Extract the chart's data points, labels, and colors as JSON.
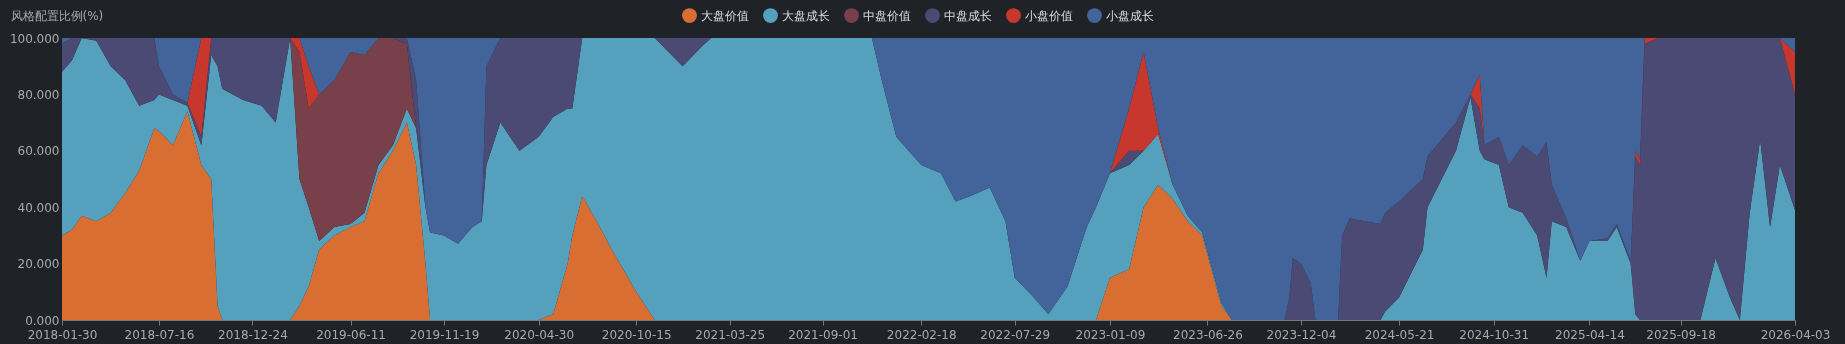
{
  "chart_data": {
    "type": "area",
    "stacked": true,
    "ylabel": "风格配置比例(%)",
    "legend": "top",
    "x": [
      "2018-01-30",
      "2018-02-16",
      "2018-03-05",
      "2018-03-30",
      "2018-04-24",
      "2018-05-19",
      "2018-06-12",
      "2018-07-08",
      "2018-07-16",
      "2018-08-09",
      "2018-09-03",
      "2018-09-27",
      "2018-10-14",
      "2018-10-25",
      "2018-11-02",
      "2018-12-08",
      "2019-01-09",
      "2019-02-02",
      "2019-02-27",
      "2019-03-15",
      "2019-03-31",
      "2019-04-18",
      "2019-05-14",
      "2019-06-11",
      "2019-07-05",
      "2019-07-29",
      "2019-08-23",
      "2019-09-16",
      "2019-10-02",
      "2019-10-18",
      "2019-10-26",
      "2019-11-19",
      "2019-12-13",
      "2020-01-07",
      "2020-01-23",
      "2020-01-31",
      "2020-02-24",
      "2020-03-28",
      "2020-04-30",
      "2020-05-25",
      "2020-06-19",
      "2020-06-27",
      "2020-07-14",
      "2020-08-08",
      "2020-09-03",
      "2020-10-15",
      "2020-11-16",
      "2021-01-03",
      "2021-02-05",
      "2021-02-21",
      "2021-11-25",
      "2021-12-12",
      "2022-01-06",
      "2022-02-18",
      "2022-03-24",
      "2022-04-18",
      "2022-05-14",
      "2022-06-16",
      "2022-07-13",
      "2022-07-29",
      "2022-08-31",
      "2022-09-25",
      "2022-10-28",
      "2022-11-30",
      "2022-12-16",
      "2023-01-01",
      "2023-01-09",
      "2023-02-11",
      "2023-03-08",
      "2023-04-02",
      "2023-04-27",
      "2023-05-23",
      "2023-06-17",
      "2023-07-20",
      "2023-08-07",
      "2023-11-06",
      "2023-11-14",
      "2023-11-20",
      "2023-12-04",
      "2023-12-21",
      "2023-12-29",
      "2024-02-06",
      "2024-02-13",
      "2024-02-26",
      "2024-04-19",
      "2024-04-27",
      "2024-05-21",
      "2024-07-01",
      "2024-07-09",
      "2024-08-27",
      "2024-09-21",
      "2024-10-07",
      "2024-10-15",
      "2024-11-09",
      "2024-11-26",
      "2024-12-20",
      "2025-01-14",
      "2025-01-30",
      "2025-02-08",
      "2025-03-05",
      "2025-03-29",
      "2025-04-14",
      "2025-05-15",
      "2025-05-31",
      "2025-06-24",
      "2025-07-02",
      "2025-07-10",
      "2025-07-18",
      "2025-08-11",
      "2025-10-22",
      "2025-11-17",
      "2025-12-12",
      "2025-12-29",
      "2026-01-15",
      "2026-02-02",
      "2026-02-19",
      "2026-03-08",
      "2026-04-03"
    ],
    "series": [
      {
        "name": "大盘价值",
        "color": "#d96e32",
        "values": [
          30,
          32,
          37,
          35,
          38,
          45,
          53,
          68,
          67,
          62,
          74,
          55,
          50,
          5,
          0,
          0,
          0,
          0,
          0,
          5,
          12,
          25,
          30,
          33,
          35,
          52,
          60,
          70,
          55,
          20,
          0,
          0,
          0,
          0,
          0,
          0,
          0,
          0,
          0,
          2,
          20,
          30,
          44,
          35,
          25,
          10,
          0,
          0,
          0,
          0,
          0,
          0,
          0,
          0,
          0,
          0,
          0,
          0,
          0,
          0,
          0,
          0,
          0,
          0,
          0,
          10,
          15,
          18,
          40,
          48,
          43,
          35,
          30,
          5,
          0,
          0,
          0,
          0,
          0,
          0,
          0,
          0,
          0,
          0,
          0,
          0,
          0,
          0,
          0,
          0,
          0,
          0,
          0,
          0,
          0,
          0,
          0,
          0,
          0,
          0,
          0,
          0,
          0,
          0,
          0,
          0,
          0,
          0,
          0,
          0,
          0,
          0,
          0,
          0,
          0,
          0,
          0,
          0
        ]
      },
      {
        "name": "大盘成长",
        "color": "#55a0bd",
        "values": [
          58,
          60,
          63,
          64,
          52,
          40,
          23,
          10,
          13,
          16,
          2,
          7,
          44,
          85,
          82,
          78,
          76,
          70,
          100,
          45,
          28,
          3,
          3,
          1,
          3,
          3,
          2,
          5,
          13,
          20,
          31,
          30,
          27,
          33,
          35,
          55,
          70,
          60,
          65,
          70,
          55,
          45,
          56,
          65,
          75,
          90,
          100,
          90,
          97,
          100,
          100,
          85,
          65,
          55,
          52,
          42,
          44,
          47,
          35,
          15,
          8,
          2,
          12,
          33,
          40,
          38,
          37,
          37,
          20,
          18,
          5,
          2,
          1,
          1,
          0,
          0,
          0,
          0,
          0,
          0,
          0,
          0,
          0,
          0,
          0,
          3,
          8,
          25,
          40,
          60,
          79,
          60,
          57,
          55,
          40,
          38,
          30,
          15,
          35,
          33,
          21,
          28,
          28,
          33,
          20,
          2,
          0,
          0,
          0,
          0,
          22,
          8,
          0,
          38,
          64,
          33,
          55,
          39
        ]
      },
      {
        "name": "中盘价值",
        "color": "#77404a",
        "values": [
          null,
          null,
          null,
          null,
          null,
          null,
          null,
          null,
          null,
          null,
          null,
          null,
          null,
          null,
          null,
          null,
          null,
          null,
          0,
          45,
          35,
          52,
          52,
          61,
          56,
          45,
          38,
          23,
          0,
          null,
          null,
          null,
          null,
          null,
          null,
          null,
          null,
          null,
          null,
          null,
          null,
          null,
          null,
          null,
          null,
          null,
          null,
          null,
          null,
          null,
          null,
          null,
          null,
          null,
          null,
          null,
          null,
          null,
          null,
          null,
          null,
          null,
          null,
          null,
          null,
          null,
          null,
          null,
          null,
          null,
          null,
          null,
          null,
          null,
          null,
          null,
          null,
          null,
          null,
          null,
          null,
          null,
          null,
          null,
          null,
          null,
          null,
          null,
          null,
          null,
          null,
          null,
          null,
          null,
          null,
          null,
          null,
          null,
          null,
          null,
          null,
          null,
          null,
          null,
          null,
          null,
          null,
          null,
          null,
          null,
          null,
          null,
          null,
          null,
          null,
          null,
          null,
          null
        ]
      },
      {
        "name": "中盘成长",
        "color": "#4a4a75",
        "values": [
          10,
          8,
          0,
          1,
          10,
          15,
          24,
          22,
          10,
          2,
          1,
          3,
          6,
          10,
          18,
          22,
          24,
          30,
          0,
          null,
          null,
          null,
          null,
          null,
          null,
          null,
          0,
          2,
          17,
          0,
          null,
          null,
          null,
          null,
          0,
          35,
          30,
          40,
          35,
          28,
          25,
          25,
          0,
          null,
          null,
          null,
          0,
          10,
          3,
          0,
          null,
          null,
          null,
          null,
          null,
          null,
          null,
          null,
          null,
          null,
          null,
          null,
          null,
          null,
          null,
          null,
          0,
          5,
          0,
          null,
          null,
          null,
          null,
          null,
          null,
          0,
          8,
          22,
          20,
          13,
          0,
          0,
          30,
          36,
          34,
          35,
          34,
          25,
          18,
          10,
          1,
          15,
          5,
          10,
          15,
          24,
          28,
          48,
          13,
          3,
          0,
          0,
          1,
          1,
          1,
          56,
          55,
          98,
          100,
          100,
          78,
          92,
          100,
          62,
          36,
          67,
          45,
          41
        ]
      },
      {
        "name": "小盘价值",
        "color": "#c8372d",
        "values": [
          null,
          null,
          null,
          null,
          null,
          null,
          null,
          null,
          null,
          null,
          0,
          35,
          0,
          null,
          null,
          null,
          null,
          null,
          0,
          5,
          15,
          0,
          null,
          null,
          null,
          null,
          null,
          null,
          null,
          null,
          null,
          null,
          null,
          null,
          null,
          null,
          null,
          null,
          null,
          null,
          null,
          null,
          null,
          null,
          null,
          null,
          null,
          null,
          null,
          null,
          null,
          null,
          null,
          null,
          null,
          null,
          null,
          null,
          null,
          null,
          null,
          null,
          null,
          null,
          null,
          null,
          0,
          15,
          35,
          2,
          0,
          null,
          null,
          null,
          null,
          null,
          null,
          null,
          null,
          null,
          null,
          null,
          null,
          null,
          null,
          null,
          null,
          null,
          null,
          null,
          0,
          12,
          0,
          null,
          null,
          null,
          null,
          null,
          null,
          null,
          null,
          null,
          null,
          null,
          0,
          2,
          2,
          2,
          0,
          null,
          null,
          null,
          null,
          null,
          null,
          null,
          0,
          15
        ]
      },
      {
        "name": "小盘成长",
        "color": "#43649a",
        "values": [
          2,
          0,
          null,
          null,
          null,
          null,
          null,
          0,
          10,
          20,
          23,
          0,
          null,
          null,
          null,
          null,
          null,
          null,
          null,
          0,
          10,
          20,
          15,
          5,
          6,
          0,
          null,
          0,
          15,
          60,
          69,
          70,
          73,
          67,
          65,
          10,
          0,
          null,
          null,
          null,
          null,
          null,
          null,
          null,
          null,
          null,
          null,
          null,
          null,
          null,
          0,
          15,
          35,
          45,
          48,
          58,
          56,
          53,
          65,
          85,
          92,
          98,
          88,
          67,
          60,
          52,
          48,
          25,
          5,
          32,
          52,
          63,
          69,
          94,
          100,
          100,
          92,
          78,
          80,
          87,
          100,
          100,
          70,
          64,
          66,
          62,
          58,
          50,
          42,
          30,
          20,
          13,
          38,
          35,
          45,
          38,
          42,
          37,
          52,
          64,
          79,
          72,
          71,
          66,
          79,
          40,
          43,
          0,
          null,
          null,
          null,
          null,
          null,
          null,
          null,
          null,
          0,
          5
        ]
      }
    ],
    "xlim": [
      "2018-01-30",
      "2026-04-03"
    ],
    "xticks": [
      "2018-01-30",
      "2018-07-16",
      "2018-12-24",
      "2019-06-11",
      "2019-11-19",
      "2020-04-30",
      "2020-10-15",
      "2021-03-25",
      "2021-09-01",
      "2022-02-18",
      "2022-07-29",
      "2023-01-09",
      "2023-06-26",
      "2023-12-04",
      "2024-05-21",
      "2024-10-31",
      "2025-04-14",
      "2025-09-18",
      "2026-04-03"
    ],
    "ylim": [
      0,
      100
    ],
    "yticks": [
      {
        "value": 0,
        "label": "0.000"
      },
      {
        "value": 20,
        "label": "20.000"
      },
      {
        "value": 40,
        "label": "40.000"
      },
      {
        "value": 60,
        "label": "60.000"
      },
      {
        "value": 80,
        "label": "80.000"
      },
      {
        "value": 100,
        "label": "100.000"
      }
    ]
  }
}
